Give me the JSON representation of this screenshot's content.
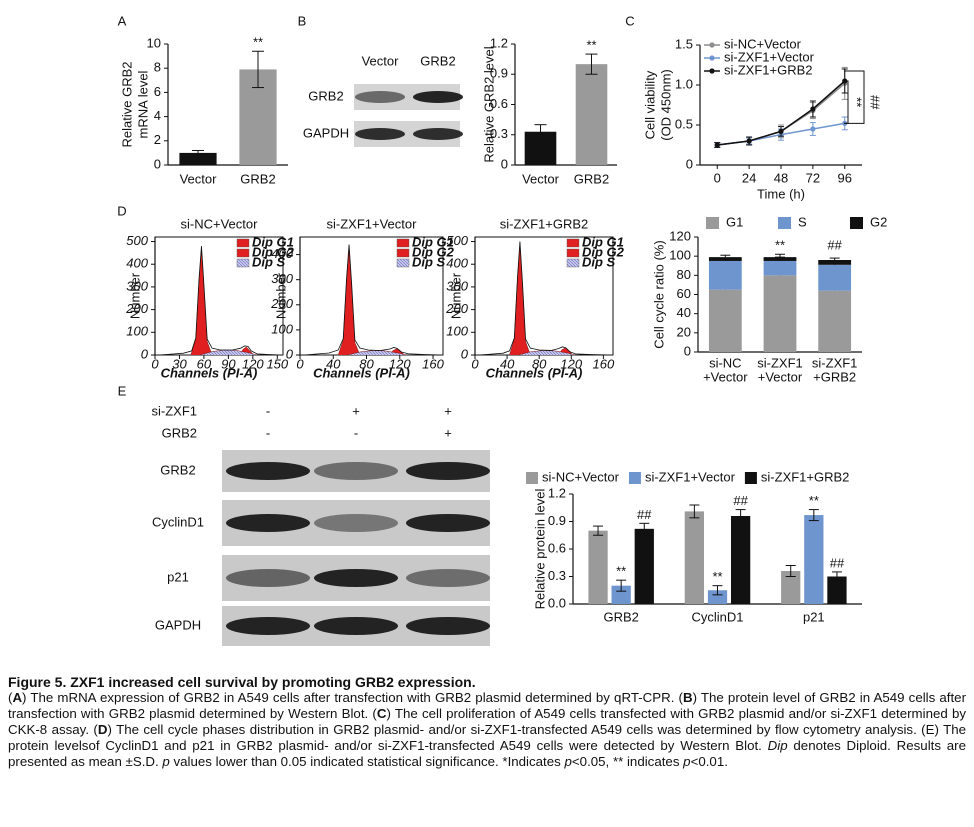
{
  "chart_data": [
    {
      "type": "bar",
      "panel": "A",
      "ylabel": [
        "Relative GRB2",
        "mRNA level"
      ],
      "categories": [
        "Vector",
        "GRB2"
      ],
      "values": [
        1,
        7.9
      ],
      "errors": [
        0.2,
        1.5
      ],
      "colors": [
        "#111111",
        "#9a9a9a"
      ],
      "ylim": [
        0,
        10
      ],
      "yticks": [
        0,
        2,
        4,
        6,
        8,
        10
      ],
      "annotations": [
        {
          "index": 1,
          "text": "**"
        }
      ]
    },
    {
      "type": "bar",
      "panel": "B",
      "ylabel": "Relative GRB2 level",
      "categories": [
        "Vector",
        "GRB2"
      ],
      "values": [
        0.33,
        1.0
      ],
      "errors": [
        0.07,
        0.1
      ],
      "colors": [
        "#111111",
        "#9a9a9a"
      ],
      "ylim": [
        0,
        1.2
      ],
      "yticks": [
        0,
        0.3,
        0.6,
        0.9,
        1.2
      ],
      "annotations": [
        {
          "index": 1,
          "text": "**"
        }
      ]
    },
    {
      "type": "line",
      "panel": "C",
      "ylabel": [
        "Cell viability",
        "(OD 450nm)"
      ],
      "xlabel": "Time (h)",
      "x": [
        0,
        24,
        48,
        72,
        96
      ],
      "xlim": [
        -13,
        109
      ],
      "xticks": [
        0,
        24,
        48,
        72,
        96
      ],
      "ylim": [
        0,
        1.5
      ],
      "yticks": [
        0,
        0.5,
        {
          "value": 1,
          "label": "1.0"
        },
        1.5
      ],
      "series": [
        {
          "name": "si-NC+Vector",
          "color": "#8c8c8c",
          "values": [
            0.25,
            0.3,
            0.42,
            0.68,
            1.02
          ],
          "errors": [
            0.03,
            0.04,
            0.08,
            0.1,
            0.2
          ]
        },
        {
          "name": "si-ZXF1+Vector",
          "color": "#6f95cf",
          "values": [
            0.25,
            0.3,
            0.38,
            0.45,
            0.52
          ],
          "errors": [
            0.03,
            0.04,
            0.07,
            0.08,
            0.08
          ]
        },
        {
          "name": "si-ZXF1+GRB2",
          "color": "#111111",
          "values": [
            0.25,
            0.3,
            0.42,
            0.7,
            1.05
          ],
          "errors": [
            0.03,
            0.05,
            0.06,
            0.1,
            0.15
          ]
        }
      ],
      "annotations": [
        "**",
        "##"
      ]
    },
    {
      "type": "area",
      "panel": "D",
      "title": "si-NC+Vector",
      "ylabel": "Number",
      "xlabel": "Channels (PI-A)",
      "xlim": [
        0,
        157
      ],
      "xticks": [
        0,
        30,
        60,
        90,
        120,
        150
      ],
      "ylim": [
        0,
        520
      ],
      "yticks": [
        0,
        100,
        200,
        300,
        400,
        500
      ],
      "series": [
        {
          "name": "Dip G1",
          "color": "#e02020",
          "x": [
            44,
            50,
            54,
            57,
            60,
            64,
            70
          ],
          "values": [
            0,
            70,
            330,
            470,
            300,
            60,
            0
          ]
        },
        {
          "name": "Dip G2",
          "color": "#e02020",
          "x": [
            104,
            108,
            112,
            116,
            121
          ],
          "values": [
            0,
            25,
            35,
            20,
            0
          ]
        },
        {
          "name": "Dip S",
          "color": "#b8b8e0",
          "x": [
            55,
            70,
            85,
            100,
            115,
            125
          ],
          "values": [
            0,
            15,
            22,
            20,
            10,
            0
          ]
        }
      ],
      "envelope": {
        "x": [
          5,
          20,
          35,
          45,
          50,
          54,
          57,
          60,
          64,
          70,
          80,
          95,
          105,
          110,
          114,
          118,
          125,
          140,
          155
        ],
        "values": [
          0,
          4,
          8,
          18,
          75,
          335,
          480,
          310,
          70,
          30,
          22,
          22,
          30,
          40,
          38,
          18,
          5,
          2,
          0
        ]
      }
    },
    {
      "type": "area",
      "title": "si-ZXF1+Vector",
      "ylabel": "Number",
      "xlabel": "Channels (PI-A)",
      "xlim": [
        0,
        172
      ],
      "xticks": [
        0,
        40,
        80,
        120,
        160
      ],
      "ylim": [
        0,
        470
      ],
      "yticks": [
        0,
        100,
        200,
        300,
        400
      ],
      "series": [
        {
          "name": "Dip G1",
          "color": "#e02020",
          "x": [
            46,
            52,
            56,
            59,
            62,
            66,
            72
          ],
          "values": [
            0,
            60,
            300,
            430,
            280,
            50,
            0
          ]
        },
        {
          "name": "Dip G2",
          "color": "#e02020",
          "x": [
            108,
            112,
            117,
            121,
            126
          ],
          "values": [
            0,
            18,
            25,
            14,
            0
          ]
        },
        {
          "name": "Dip S",
          "color": "#b8b8e0",
          "x": [
            57,
            72,
            88,
            103,
            118,
            128
          ],
          "values": [
            0,
            12,
            18,
            16,
            8,
            0
          ]
        }
      ],
      "envelope": {
        "x": [
          5,
          20,
          35,
          46,
          52,
          56,
          59,
          62,
          66,
          72,
          82,
          97,
          108,
          113,
          117,
          122,
          130,
          150,
          170
        ],
        "values": [
          0,
          4,
          8,
          20,
          65,
          305,
          440,
          290,
          60,
          28,
          20,
          18,
          24,
          30,
          26,
          12,
          5,
          2,
          0
        ]
      }
    },
    {
      "type": "area",
      "title": "si-ZXF1+GRB2",
      "ylabel": "Number",
      "xlabel": "Channels (PI-A)",
      "xlim": [
        0,
        172
      ],
      "xticks": [
        0,
        40,
        80,
        120,
        160
      ],
      "ylim": [
        0,
        520
      ],
      "yticks": [
        0,
        100,
        200,
        300,
        400,
        500
      ],
      "series": [
        {
          "name": "Dip G1",
          "color": "#e02020",
          "x": [
            43,
            49,
            53,
            56,
            59,
            63,
            69
          ],
          "values": [
            0,
            70,
            340,
            490,
            320,
            60,
            0
          ]
        },
        {
          "name": "Dip G2",
          "color": "#e02020",
          "x": [
            104,
            108,
            113,
            117,
            122
          ],
          "values": [
            0,
            22,
            32,
            18,
            0
          ]
        },
        {
          "name": "Dip S",
          "color": "#b8b8e0",
          "x": [
            54,
            69,
            85,
            100,
            115,
            125
          ],
          "values": [
            0,
            14,
            20,
            18,
            9,
            0
          ]
        }
      ],
      "envelope": {
        "x": [
          5,
          20,
          35,
          43,
          49,
          53,
          56,
          59,
          63,
          69,
          80,
          95,
          104,
          109,
          113,
          118,
          125,
          145,
          170
        ],
        "values": [
          0,
          4,
          8,
          18,
          75,
          345,
          500,
          330,
          70,
          30,
          22,
          20,
          28,
          36,
          32,
          15,
          5,
          2,
          0
        ]
      }
    },
    {
      "type": "stacked",
      "ylabel": "Cell cycle ratio (%)",
      "categories": [
        [
          "si-NC",
          "+Vector"
        ],
        [
          "si-ZXF1",
          "+Vector"
        ],
        [
          "si-ZXF1",
          "+GRB2"
        ]
      ],
      "ylim": [
        0,
        120
      ],
      "yticks": [
        0,
        20,
        40,
        60,
        80,
        100,
        120
      ],
      "series": [
        {
          "name": "G1",
          "color": "#9a9a9a",
          "values": [
            65,
            80,
            64
          ],
          "errors": [
            5,
            8,
            2
          ]
        },
        {
          "name": "S",
          "color": "#6f95cf",
          "values": [
            30,
            15,
            27
          ],
          "errors": [
            3,
            4,
            3
          ]
        },
        {
          "name": "G2",
          "color": "#111111",
          "values": [
            4,
            4,
            5
          ],
          "errors": [
            2,
            3,
            2
          ]
        }
      ],
      "annotations": [
        {
          "index": 1,
          "text": "**"
        },
        {
          "index": 2,
          "text": "##"
        }
      ]
    },
    {
      "type": "grouped",
      "panel": "E",
      "ylabel": "Relative protein level",
      "categories": [
        "GRB2",
        "CyclinD1",
        "p21"
      ],
      "ylim": [
        0,
        1.2
      ],
      "yticks": [
        {
          "value": 0,
          "label": "0.0"
        },
        0.3,
        0.6,
        0.9,
        1.2
      ],
      "series": [
        {
          "name": "si-NC+Vector",
          "color": "#9a9a9a",
          "values": [
            0.8,
            1.01,
            0.36
          ],
          "errors": [
            0.05,
            0.07,
            0.06
          ]
        },
        {
          "name": "si-ZXF1+Vector",
          "color": "#6f95cf",
          "values": [
            0.2,
            0.15,
            0.97
          ],
          "errors": [
            0.06,
            0.05,
            0.06
          ],
          "annotations": [
            "**",
            "**",
            "**"
          ]
        },
        {
          "name": "si-ZXF1+GRB2",
          "color": "#111111",
          "values": [
            0.82,
            0.96,
            0.3
          ],
          "errors": [
            0.06,
            0.07,
            0.05
          ],
          "annotations": [
            "##",
            "##",
            "##"
          ]
        }
      ]
    }
  ],
  "blots": {
    "B": {
      "columns": [
        "Vector",
        "GRB2"
      ],
      "rows": [
        "GRB2",
        "GAPDH"
      ]
    },
    "E": {
      "conditions": [
        {
          "label": "si-ZXF1",
          "marks": [
            "-",
            "+",
            "+"
          ]
        },
        {
          "label": "GRB2",
          "marks": [
            "-",
            "-",
            "+"
          ]
        }
      ],
      "rows": [
        "GRB2",
        "CyclinD1",
        "p21",
        "GAPDH"
      ]
    }
  },
  "caption": {
    "title": "Figure 5. ZXF1 increased cell survival by promoting GRB2 expression.",
    "runs": [
      {
        "text": "("
      },
      {
        "text": "A",
        "bold": true
      },
      {
        "text": ") The mRNA expression of GRB2 in A549 cells after transfection with GRB2 plasmid determined by qRT-CPR. ("
      },
      {
        "text": "B",
        "bold": true
      },
      {
        "text": ") The protein level of GRB2 in A549 cells after transfection with GRB2 plasmid determined by Western Blot. ("
      },
      {
        "text": "C",
        "bold": true
      },
      {
        "text": ") The cell proliferation of A549 cells transfected with GRB2 plasmid and/or si-ZXF1 determined by CKK-8 assay. ("
      },
      {
        "text": "D",
        "bold": true
      },
      {
        "text": ") The cell cycle phases distribution in GRB2 plasmid- and/or si-ZXF1-transfected A549 cells was determined by flow cytometry analysis. (E) The protein levelsof CyclinD1 and p21 in GRB2 plasmid- and/or si-ZXF1-transfected A549 cells were detected by Western Blot. "
      },
      {
        "text": "Dip",
        "italic": true
      },
      {
        "text": " denotes Diploid. Results are presented as mean ±S.D. "
      },
      {
        "text": "p",
        "italic": true
      },
      {
        "text": " values lower than 0.05 indicated statistical significance. *Indicates "
      },
      {
        "text": "p",
        "italic": true
      },
      {
        "text": "<0.05, ** indicates "
      },
      {
        "text": "p",
        "italic": true
      },
      {
        "text": "<0.01."
      }
    ]
  }
}
